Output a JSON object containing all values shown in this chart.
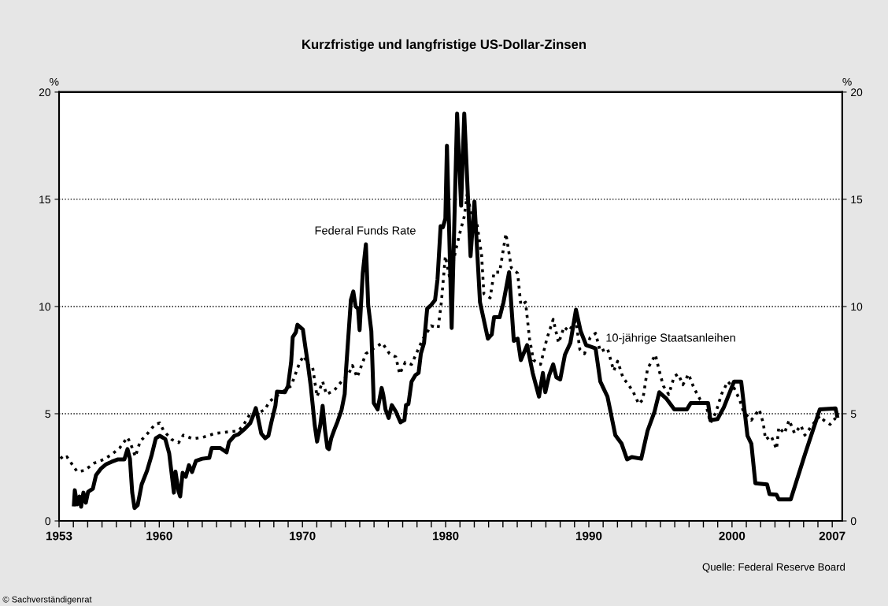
{
  "chart_data": {
    "type": "line",
    "title": "Kurzfristige und langfristige US-Dollar-Zinsen",
    "ylabel": "%",
    "y2label": "%",
    "xlim": [
      1953,
      2007.7
    ],
    "xticks": [
      {
        "value": 1953,
        "label": "1953"
      },
      {
        "value": 1954,
        "label": null
      },
      {
        "value": 1955,
        "label": null
      },
      {
        "value": 1956,
        "label": null
      },
      {
        "value": 1957,
        "label": null
      },
      {
        "value": 1958,
        "label": null
      },
      {
        "value": 1959,
        "label": null
      },
      {
        "value": 1960,
        "label": "1960"
      },
      {
        "value": 1961,
        "label": null
      },
      {
        "value": 1962,
        "label": null
      },
      {
        "value": 1963,
        "label": null
      },
      {
        "value": 1964,
        "label": null
      },
      {
        "value": 1965,
        "label": null
      },
      {
        "value": 1966,
        "label": null
      },
      {
        "value": 1967,
        "label": null
      },
      {
        "value": 1968,
        "label": null
      },
      {
        "value": 1969,
        "label": null
      },
      {
        "value": 1970,
        "label": "1970"
      },
      {
        "value": 1971,
        "label": null
      },
      {
        "value": 1972,
        "label": null
      },
      {
        "value": 1973,
        "label": null
      },
      {
        "value": 1974,
        "label": null
      },
      {
        "value": 1975,
        "label": null
      },
      {
        "value": 1976,
        "label": null
      },
      {
        "value": 1977,
        "label": null
      },
      {
        "value": 1978,
        "label": null
      },
      {
        "value": 1979,
        "label": null
      },
      {
        "value": 1980,
        "label": "1980"
      },
      {
        "value": 1981,
        "label": null
      },
      {
        "value": 1982,
        "label": null
      },
      {
        "value": 1983,
        "label": null
      },
      {
        "value": 1984,
        "label": null
      },
      {
        "value": 1985,
        "label": null
      },
      {
        "value": 1986,
        "label": null
      },
      {
        "value": 1987,
        "label": null
      },
      {
        "value": 1988,
        "label": null
      },
      {
        "value": 1989,
        "label": null
      },
      {
        "value": 1990,
        "label": "1990"
      },
      {
        "value": 1991,
        "label": null
      },
      {
        "value": 1992,
        "label": null
      },
      {
        "value": 1993,
        "label": null
      },
      {
        "value": 1994,
        "label": null
      },
      {
        "value": 1995,
        "label": null
      },
      {
        "value": 1996,
        "label": null
      },
      {
        "value": 1997,
        "label": null
      },
      {
        "value": 1998,
        "label": null
      },
      {
        "value": 1999,
        "label": null
      },
      {
        "value": 2000,
        "label": "2000"
      },
      {
        "value": 2001,
        "label": null
      },
      {
        "value": 2002,
        "label": null
      },
      {
        "value": 2003,
        "label": null
      },
      {
        "value": 2004,
        "label": null
      },
      {
        "value": 2005,
        "label": null
      },
      {
        "value": 2006,
        "label": null
      },
      {
        "value": 2007,
        "label": "2007"
      }
    ],
    "ylim": [
      0,
      20
    ],
    "yticks": [
      0,
      5,
      10,
      15,
      20
    ],
    "y2lim": [
      0,
      20
    ],
    "y2ticks": [
      0,
      5,
      10,
      15,
      20
    ],
    "grid": "y",
    "legend": false,
    "series": [
      {
        "name": "Federal Funds Rate",
        "color": "#000000",
        "line_style": "solid",
        "x": [
          1954.04,
          1954.1,
          1954.26,
          1954.43,
          1954.54,
          1954.7,
          1954.87,
          1955.03,
          1955.36,
          1955.58,
          1955.91,
          1956.3,
          1956.68,
          1957.12,
          1957.56,
          1957.78,
          1957.95,
          1958.11,
          1958.27,
          1958.49,
          1958.77,
          1959.15,
          1959.48,
          1959.76,
          1960.03,
          1960.42,
          1960.69,
          1960.91,
          1961.02,
          1961.13,
          1961.35,
          1961.46,
          1961.63,
          1961.85,
          1962.07,
          1962.29,
          1962.56,
          1963.0,
          1963.49,
          1963.66,
          1964.26,
          1964.7,
          1964.87,
          1965.25,
          1965.53,
          1965.91,
          1966.35,
          1966.57,
          1966.74,
          1966.9,
          1967.12,
          1967.4,
          1967.62,
          1967.84,
          1968.11,
          1968.22,
          1968.77,
          1968.99,
          1969.21,
          1969.32,
          1969.54,
          1969.65,
          1970.03,
          1970.2,
          1970.36,
          1970.58,
          1970.86,
          1971.02,
          1971.24,
          1971.41,
          1971.57,
          1971.74,
          1971.85,
          1972.01,
          1972.23,
          1972.45,
          1972.73,
          1972.95,
          1973.05,
          1973.38,
          1973.55,
          1973.71,
          1973.88,
          1973.99,
          1974.21,
          1974.43,
          1974.59,
          1974.81,
          1974.98,
          1975.25,
          1975.53,
          1975.64,
          1975.8,
          1976.02,
          1976.24,
          1976.52,
          1976.68,
          1976.85,
          1977.12,
          1977.23,
          1977.4,
          1977.62,
          1977.89,
          1978.11,
          1978.27,
          1978.49,
          1978.71,
          1978.99,
          1979.26,
          1979.43,
          1979.65,
          1979.81,
          1979.98,
          1980.09,
          1980.42,
          1980.8,
          1981.08,
          1981.3,
          1981.74,
          1982.01,
          1982.4,
          1982.95,
          1983.22,
          1983.38,
          1983.77,
          1984.04,
          1984.43,
          1984.76,
          1985.03,
          1985.25,
          1985.69,
          1986.08,
          1986.52,
          1986.79,
          1986.96,
          1987.23,
          1987.51,
          1987.73,
          1988.0,
          1988.33,
          1988.71,
          1989.1,
          1989.43,
          1989.81,
          1990.47,
          1990.8,
          1991.3,
          1991.85,
          1992.29,
          1992.67,
          1993.0,
          1993.66,
          1994.1,
          1994.59,
          1994.92,
          1995.42,
          1995.97,
          1996.85,
          1997.12,
          1998.33,
          1998.49,
          1998.99,
          1999.43,
          2000.14,
          2000.64,
          2001.08,
          2001.35,
          2001.63,
          2002.45,
          2002.62,
          2003.11,
          2003.27,
          2004.1,
          2005.09,
          2006.13,
          2007.23,
          2007.34
        ],
        "values": [
          0.77,
          1.43,
          0.77,
          1.14,
          0.66,
          1.32,
          0.85,
          1.36,
          1.5,
          2.13,
          2.43,
          2.65,
          2.76,
          2.87,
          2.87,
          3.35,
          2.9,
          1.32,
          0.6,
          0.74,
          1.7,
          2.35,
          3.1,
          3.86,
          3.97,
          3.82,
          3.16,
          1.95,
          1.32,
          2.3,
          1.36,
          1.14,
          2.24,
          2.06,
          2.6,
          2.28,
          2.8,
          2.9,
          2.94,
          3.4,
          3.4,
          3.2,
          3.68,
          3.97,
          4.04,
          4.26,
          4.56,
          4.93,
          5.26,
          4.8,
          4.08,
          3.86,
          3.97,
          4.63,
          5.37,
          6.03,
          6.0,
          6.29,
          7.4,
          8.57,
          8.8,
          9.15,
          8.93,
          8.12,
          7.4,
          6.29,
          4.45,
          3.7,
          4.45,
          5.37,
          4.26,
          3.4,
          3.35,
          3.86,
          4.26,
          4.63,
          5.18,
          5.92,
          7.1,
          10.3,
          10.7,
          10.0,
          9.9,
          8.9,
          11.55,
          12.9,
          10.07,
          8.85,
          5.5,
          5.2,
          6.2,
          5.9,
          5.2,
          4.8,
          5.4,
          5.1,
          4.85,
          4.6,
          4.7,
          5.4,
          5.45,
          6.5,
          6.8,
          6.9,
          7.8,
          8.3,
          9.9,
          10.07,
          10.3,
          11.25,
          13.75,
          13.7,
          14.1,
          17.5,
          9.0,
          19.0,
          14.7,
          19.0,
          12.35,
          14.9,
          10.2,
          8.5,
          8.7,
          9.5,
          9.5,
          10.2,
          11.6,
          8.4,
          8.5,
          7.5,
          8.2,
          6.9,
          5.8,
          6.9,
          6.0,
          6.8,
          7.3,
          6.7,
          6.6,
          7.75,
          8.3,
          9.85,
          8.85,
          8.2,
          8.05,
          6.5,
          5.8,
          4.0,
          3.6,
          2.87,
          2.98,
          2.9,
          4.2,
          5.1,
          6.0,
          5.7,
          5.2,
          5.2,
          5.5,
          5.5,
          4.7,
          4.75,
          5.3,
          6.5,
          6.5,
          3.97,
          3.6,
          1.76,
          1.7,
          1.25,
          1.22,
          1.0,
          1.0,
          3.1,
          5.2,
          5.25,
          4.9
        ]
      },
      {
        "name": "10-jährige Staatsanleihen",
        "color": "#000000",
        "line_style": "dotted",
        "x": [
          1953.11,
          1953.27,
          1953.55,
          1954.26,
          1954.76,
          1955.47,
          1956.13,
          1956.68,
          1957.23,
          1957.78,
          1958.0,
          1958.33,
          1958.66,
          1959.21,
          1959.7,
          1960.03,
          1960.31,
          1960.86,
          1961.35,
          1961.68,
          1962.34,
          1963.05,
          1963.88,
          1964.81,
          1965.53,
          1965.91,
          1966.35,
          1967.01,
          1967.4,
          1967.67,
          1968.0,
          1969.21,
          1969.81,
          1970.09,
          1970.42,
          1970.69,
          1971.02,
          1971.41,
          1971.68,
          1972.23,
          1972.73,
          1973.22,
          1973.49,
          1973.82,
          1974.43,
          1974.98,
          1975.58,
          1976.08,
          1976.52,
          1976.79,
          1977.18,
          1977.62,
          1978.38,
          1978.99,
          1979.48,
          1979.7,
          1979.98,
          1980.31,
          1980.69,
          1981.02,
          1981.3,
          1981.52,
          1981.79,
          1982.18,
          1982.51,
          1982.67,
          1983.11,
          1983.38,
          1983.77,
          1984.21,
          1984.59,
          1985.03,
          1985.25,
          1985.58,
          1985.86,
          1986.13,
          1986.63,
          1987.07,
          1987.51,
          1987.89,
          1988.27,
          1988.6,
          1989.1,
          1989.37,
          1989.7,
          1990.09,
          1990.47,
          1990.8,
          1991.3,
          1991.74,
          1992.01,
          1992.4,
          1992.73,
          1993.11,
          1993.49,
          1993.77,
          1994.1,
          1994.65,
          1994.92,
          1995.2,
          1995.58,
          1995.97,
          1996.24,
          1996.57,
          1996.96,
          1997.34,
          1997.78,
          1998.16,
          1998.49,
          1998.88,
          1999.26,
          1999.7,
          2000.14,
          2000.53,
          2000.8,
          2001.35,
          2001.9,
          2002.18,
          2002.34,
          2002.73,
          2003.11,
          2003.27,
          2003.66,
          2003.99,
          2004.37,
          2004.81,
          2005.09,
          2005.64,
          2006.13,
          2006.41,
          2006.85,
          2007.23
        ],
        "values": [
          3.0,
          2.87,
          2.99,
          2.3,
          2.35,
          2.7,
          2.87,
          3.1,
          3.4,
          3.9,
          3.6,
          3.0,
          3.7,
          4.1,
          4.5,
          4.57,
          4.2,
          3.8,
          3.65,
          4.0,
          3.83,
          3.9,
          4.08,
          4.15,
          4.2,
          4.5,
          5.0,
          5.07,
          5.2,
          5.55,
          5.73,
          6.3,
          7.4,
          7.7,
          7.25,
          7.25,
          5.8,
          6.5,
          5.9,
          6.1,
          6.5,
          6.85,
          7.25,
          6.7,
          7.8,
          8.05,
          8.3,
          7.8,
          7.65,
          6.85,
          7.4,
          7.3,
          8.45,
          9.1,
          9.0,
          10.2,
          12.35,
          11.25,
          12.6,
          13.5,
          14.2,
          15.3,
          14.2,
          13.9,
          12.4,
          10.6,
          10.4,
          11.6,
          11.6,
          13.4,
          11.8,
          11.55,
          10.07,
          10.2,
          8.5,
          7.5,
          7.3,
          8.5,
          9.4,
          8.3,
          9.05,
          8.85,
          9.35,
          8.0,
          7.8,
          8.55,
          8.75,
          7.9,
          8.05,
          7.0,
          7.45,
          6.65,
          6.4,
          6.0,
          5.45,
          5.66,
          7.1,
          7.75,
          7.0,
          6.3,
          5.9,
          6.75,
          6.85,
          6.35,
          6.85,
          6.2,
          5.66,
          5.5,
          4.57,
          5.07,
          5.9,
          6.5,
          6.2,
          5.66,
          5.1,
          4.7,
          5.2,
          4.57,
          3.8,
          3.97,
          3.35,
          4.37,
          4.08,
          4.7,
          4.08,
          4.45,
          4.0,
          4.5,
          4.9,
          4.7,
          4.5,
          4.8
        ]
      }
    ],
    "annotations": [
      "Quelle: Federal Reserve Board",
      "© Sachverständigenrat"
    ]
  }
}
